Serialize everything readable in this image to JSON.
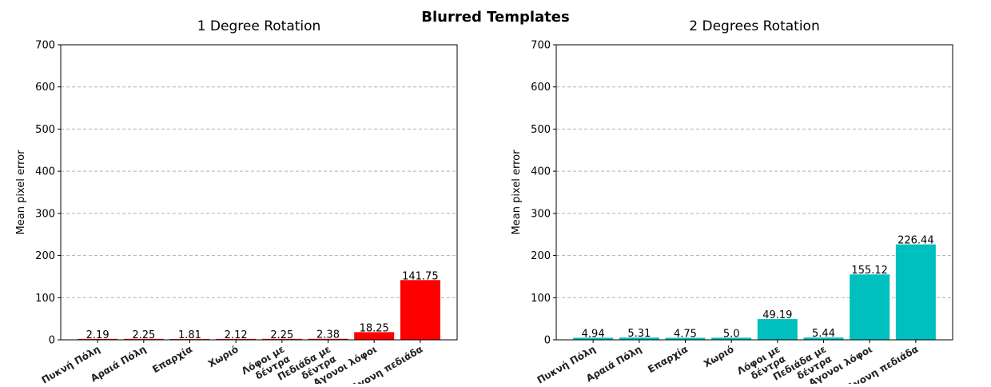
{
  "figure": {
    "suptitle": "Blurred Templates"
  },
  "chart_data": [
    {
      "type": "bar",
      "title": "1 Degree Rotation",
      "xlabel": "",
      "ylabel": "Mean pixel error",
      "ylim": [
        0,
        700
      ],
      "yticks": [
        0,
        100,
        200,
        300,
        400,
        500,
        600,
        700
      ],
      "grid": "y-dashed",
      "color": "#ff0000",
      "categories": [
        "Πυκνή Πόλη",
        "Αραιά Πόλη",
        "Επαρχία",
        "Χωριό",
        "Λόφοι με δέντρα",
        "Πεδιάδα με δέντρα",
        "Αγονοι λόφοι",
        "Αγονη πεδιάδα"
      ],
      "category_lines": [
        [
          "Πυκνή Πόλη"
        ],
        [
          "Αραιά Πόλη"
        ],
        [
          "Επαρχία"
        ],
        [
          "Χωριό"
        ],
        [
          "Λόφοι με",
          "δέντρα"
        ],
        [
          "Πεδιάδα με",
          "δέντρα"
        ],
        [
          "Αγονοι λόφοι"
        ],
        [
          "Αγονη πεδιάδα"
        ]
      ],
      "values": [
        2.19,
        2.25,
        1.81,
        2.12,
        2.25,
        2.38,
        18.25,
        141.75
      ],
      "value_labels": [
        "2.19",
        "2.25",
        "1.81",
        "2.12",
        "2.25",
        "2.38",
        "18.25",
        "141.75"
      ]
    },
    {
      "type": "bar",
      "title": "2 Degrees Rotation",
      "xlabel": "",
      "ylabel": "Mean pixel error",
      "ylim": [
        0,
        700
      ],
      "yticks": [
        0,
        100,
        200,
        300,
        400,
        500,
        600,
        700
      ],
      "grid": "y-dashed",
      "color": "#00bfbf",
      "categories": [
        "Πυκνή Πόλη",
        "Αραιά Πόλη",
        "Επαρχία",
        "Χωριό",
        "Λόφοι με δέντρα",
        "Πεδιάδα με δέντρα",
        "Αγονοι λόφοι",
        "Αγονη πεδιάδα"
      ],
      "category_lines": [
        [
          "Πυκνή Πόλη"
        ],
        [
          "Αραιά Πόλη"
        ],
        [
          "Επαρχία"
        ],
        [
          "Χωριό"
        ],
        [
          "Λόφοι με",
          "δέντρα"
        ],
        [
          "Πεδιάδα με",
          "δέντρα"
        ],
        [
          "Αγονοι λόφοι"
        ],
        [
          "Αγονη πεδιάδα"
        ]
      ],
      "values": [
        4.94,
        5.31,
        4.75,
        5.0,
        49.19,
        5.44,
        155.12,
        226.44
      ],
      "value_labels": [
        "4.94",
        "5.31",
        "4.75",
        "5.0",
        "49.19",
        "5.44",
        "155.12",
        "226.44"
      ]
    }
  ]
}
